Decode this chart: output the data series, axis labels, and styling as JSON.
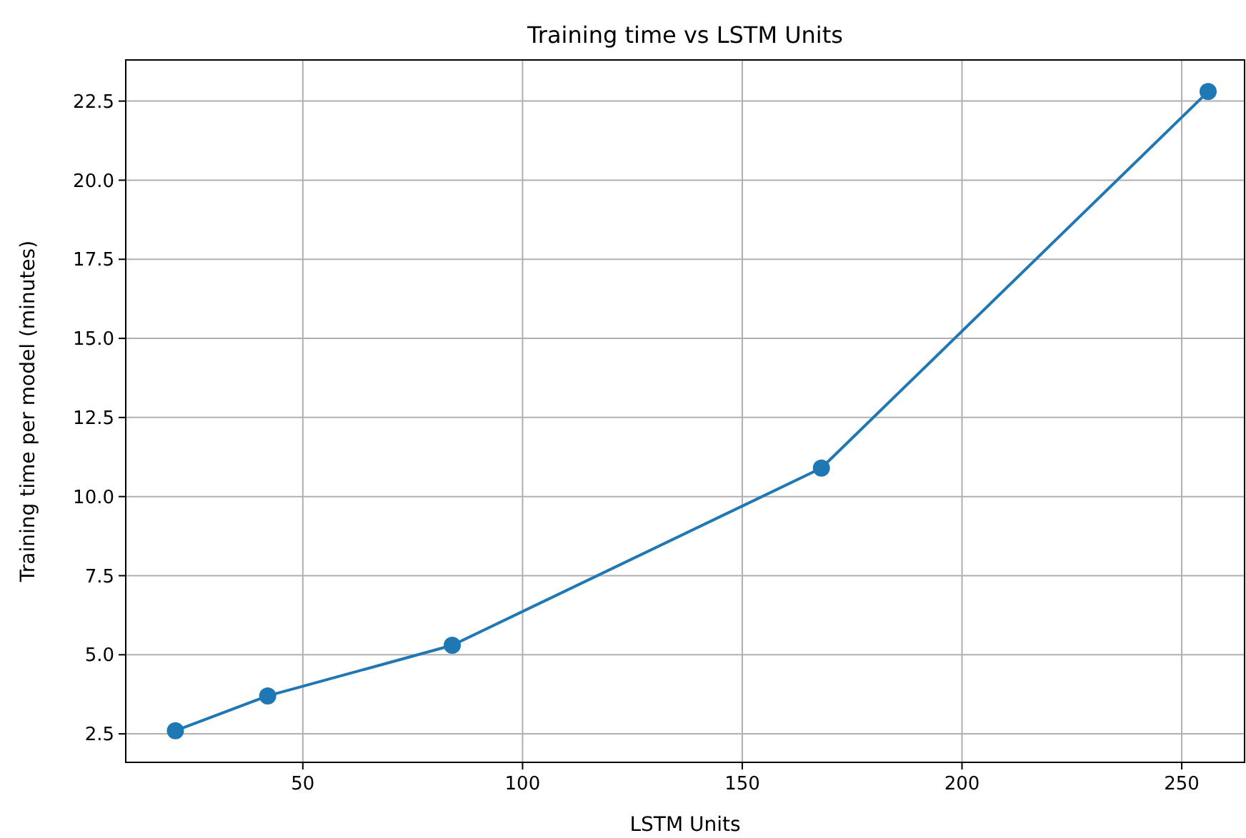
{
  "chart_data": {
    "type": "line",
    "title": "Training time vs LSTM Units",
    "xlabel": "LSTM Units",
    "ylabel": "Training time per model (minutes)",
    "x": [
      21,
      42,
      84,
      168,
      256
    ],
    "series": [
      {
        "color": "#1f77b4",
        "values": [
          2.6,
          3.7,
          5.3,
          10.9,
          22.8
        ]
      }
    ],
    "xlim": [
      9.7,
      264.3
    ],
    "xticks": [
      50,
      100,
      150,
      200,
      250
    ],
    "ylim": [
      1.6,
      23.8
    ],
    "yticks": [
      {
        "value": 2.5,
        "label": "2.5"
      },
      {
        "value": 5,
        "label": "5.0"
      },
      {
        "value": 7.5,
        "label": "7.5"
      },
      {
        "value": 10,
        "label": "10.0"
      },
      {
        "value": 12.5,
        "label": "12.5"
      },
      {
        "value": 15,
        "label": "15.0"
      },
      {
        "value": 17.5,
        "label": "17.5"
      },
      {
        "value": 20,
        "label": "20.0"
      },
      {
        "value": 22.5,
        "label": "22.5"
      }
    ],
    "grid": true,
    "marker": "circle",
    "line_style": "solid"
  }
}
